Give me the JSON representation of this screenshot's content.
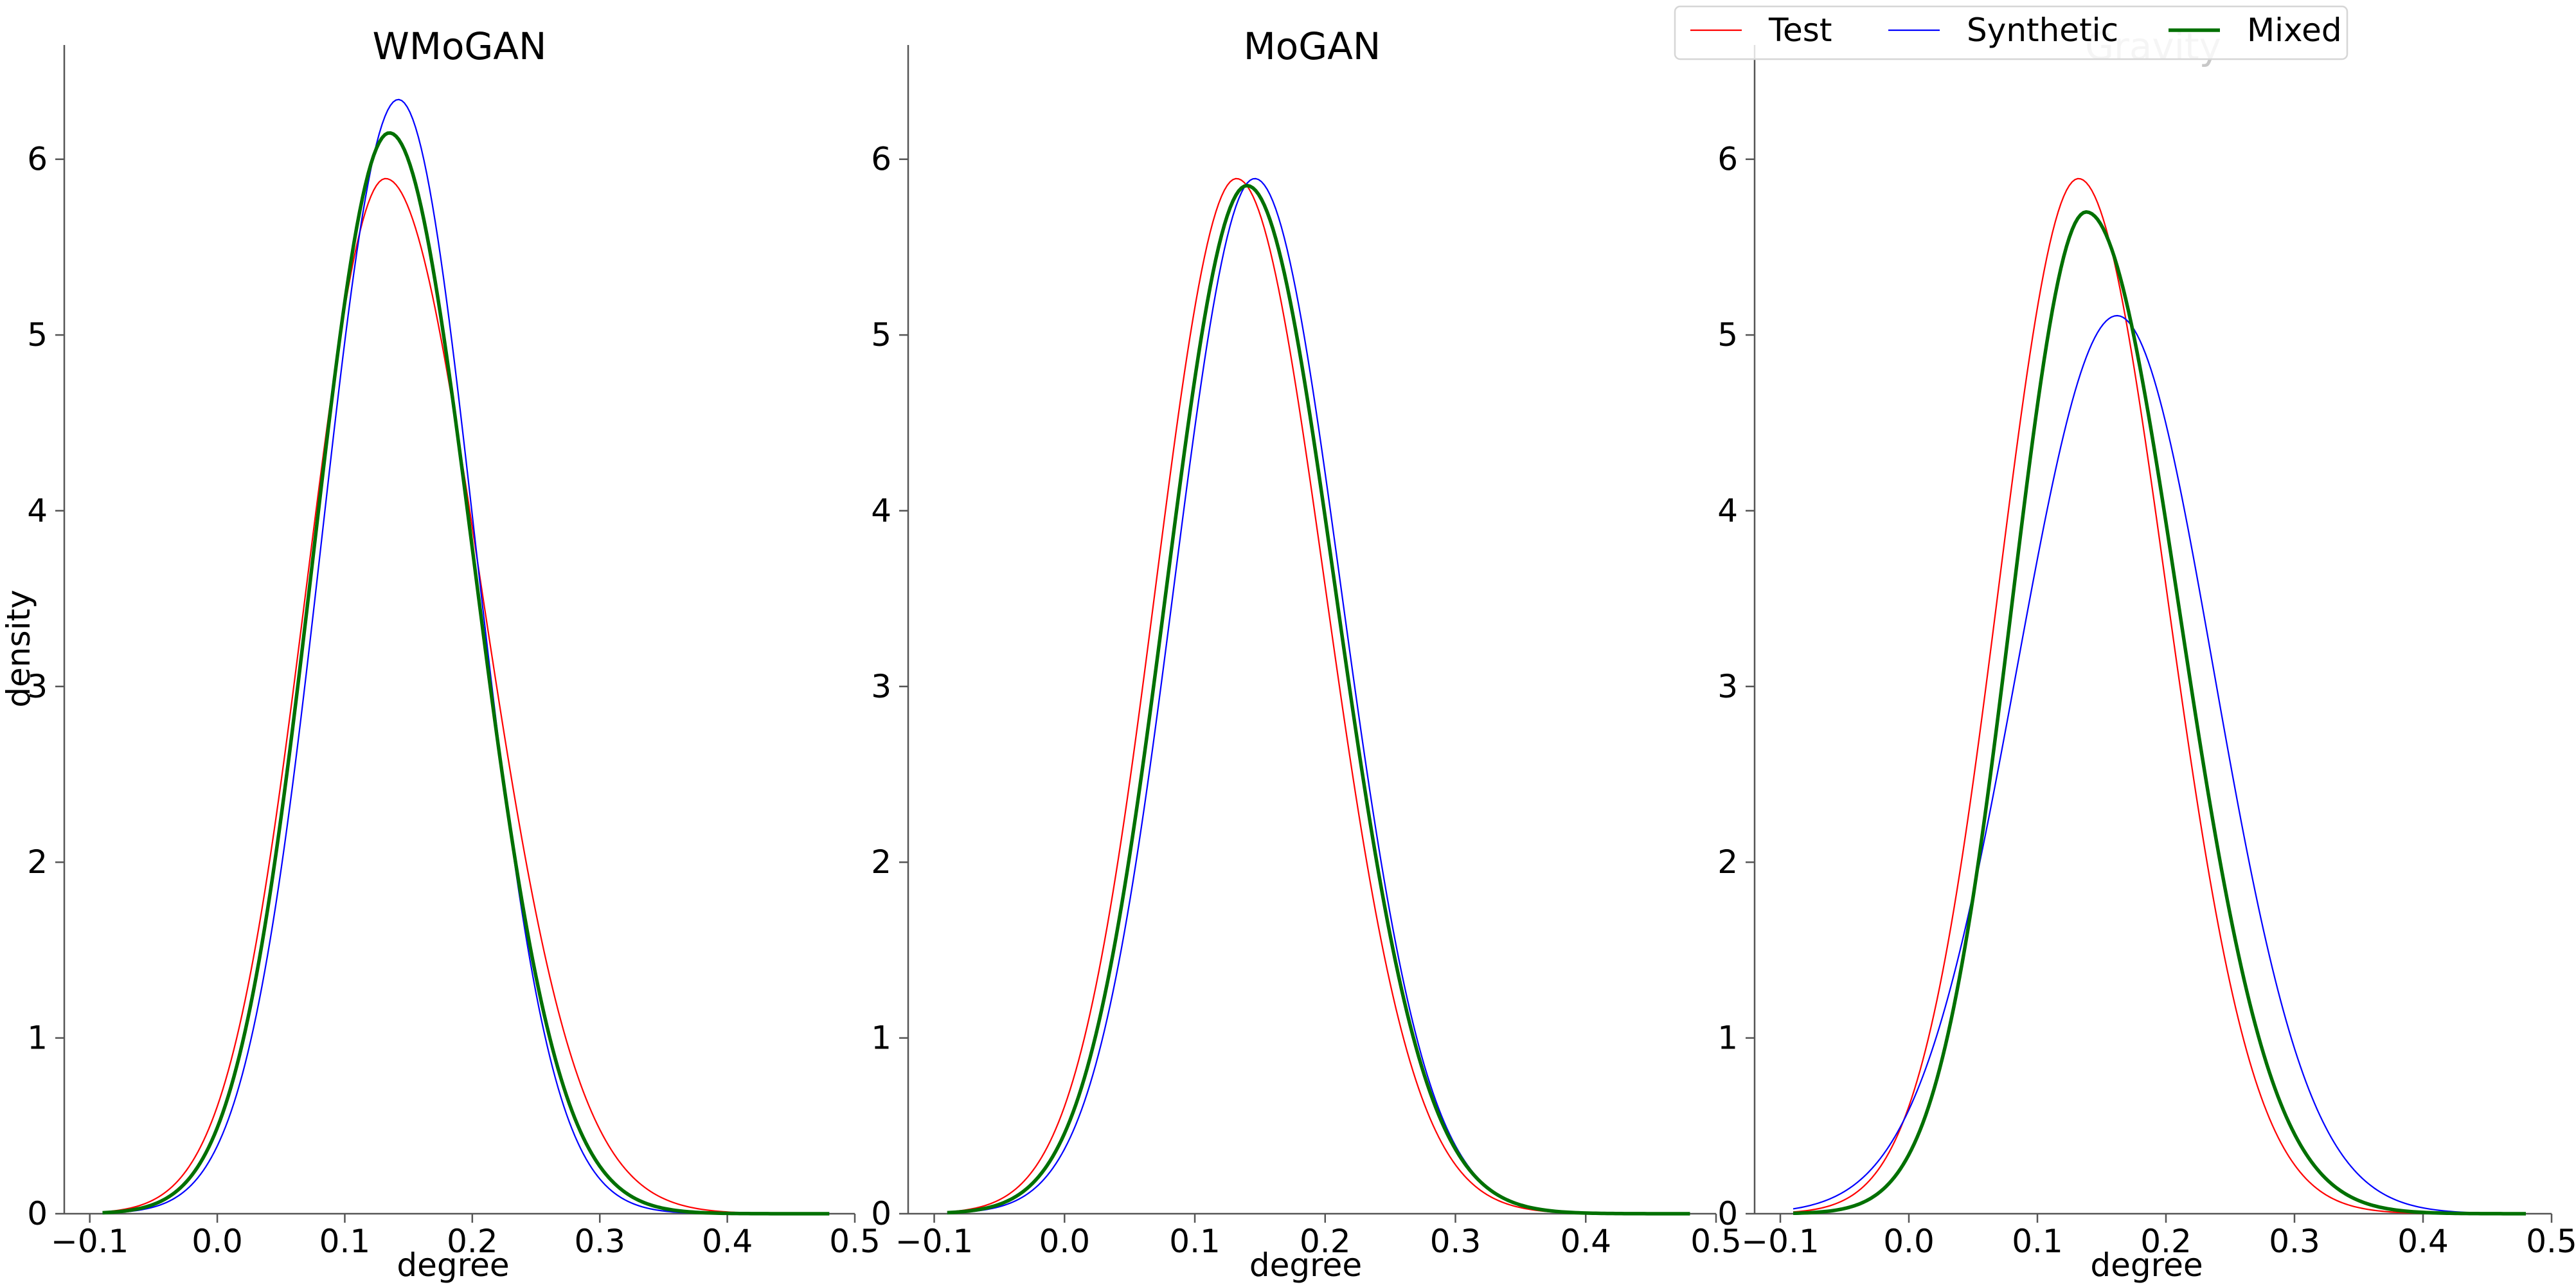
{
  "chart_data": [
    {
      "type": "line",
      "title": "WMoGAN",
      "xlabel": "degree",
      "ylabel": "density",
      "xlim": [
        -0.12,
        0.5
      ],
      "ylim": [
        0,
        6.65
      ],
      "xticks": [
        -0.1,
        0.0,
        0.1,
        0.2,
        0.3,
        0.4,
        0.5
      ],
      "xtick_labels": [
        "−0.1",
        "0.0",
        "0.1",
        "0.2",
        "0.3",
        "0.4",
        "0.5"
      ],
      "yticks": [
        0,
        1,
        2,
        3,
        4,
        5,
        6
      ],
      "ytick_labels": [
        "0",
        "1",
        "2",
        "3",
        "4",
        "5",
        "6"
      ],
      "grid": false,
      "series": [
        {
          "name": "Test",
          "color": "#ff0000",
          "curve": {
            "peak_x": 0.132,
            "peak_y": 5.89,
            "sigma_left": 0.062,
            "sigma_right": 0.075
          },
          "x_range": [
            -0.09,
            0.48
          ]
        },
        {
          "name": "Synthetic",
          "color": "#0000ff",
          "curve": {
            "peak_x": 0.142,
            "peak_y": 6.34,
            "sigma_left": 0.06,
            "sigma_right": 0.06
          },
          "x_range": [
            -0.09,
            0.48
          ]
        },
        {
          "name": "Mixed",
          "color": "#007000",
          "curve": {
            "peak_x": 0.135,
            "peak_y": 6.15,
            "sigma_left": 0.06,
            "sigma_right": 0.066
          },
          "x_range": [
            -0.09,
            0.48
          ]
        }
      ]
    },
    {
      "type": "line",
      "title": "MoGAN",
      "xlabel": "degree",
      "ylabel": "",
      "xlim": [
        -0.12,
        0.5
      ],
      "ylim": [
        0,
        6.65
      ],
      "xticks": [
        -0.1,
        0.0,
        0.1,
        0.2,
        0.3,
        0.4,
        0.5
      ],
      "xtick_labels": [
        "−0.1",
        "0.0",
        "0.1",
        "0.2",
        "0.3",
        "0.4",
        "0.5"
      ],
      "yticks": [
        0,
        1,
        2,
        3,
        4,
        5,
        6
      ],
      "ytick_labels": [
        "0",
        "1",
        "2",
        "3",
        "4",
        "5",
        "6"
      ],
      "grid": false,
      "series": [
        {
          "name": "Test",
          "color": "#ff0000",
          "curve": {
            "peak_x": 0.132,
            "peak_y": 5.89,
            "sigma_left": 0.062,
            "sigma_right": 0.068
          },
          "x_range": [
            -0.09,
            0.48
          ]
        },
        {
          "name": "Synthetic",
          "color": "#0000ff",
          "curve": {
            "peak_x": 0.146,
            "peak_y": 5.89,
            "sigma_left": 0.062,
            "sigma_right": 0.066
          },
          "x_range": [
            -0.09,
            0.48
          ]
        },
        {
          "name": "Mixed",
          "color": "#007000",
          "curve": {
            "peak_x": 0.14,
            "peak_y": 5.85,
            "sigma_left": 0.062,
            "sigma_right": 0.068
          },
          "x_range": [
            -0.09,
            0.48
          ]
        }
      ]
    },
    {
      "type": "line",
      "title": "Gravity",
      "xlabel": "degree",
      "ylabel": "",
      "xlim": [
        -0.12,
        0.5
      ],
      "ylim": [
        0,
        6.65
      ],
      "xticks": [
        -0.1,
        0.0,
        0.1,
        0.2,
        0.3,
        0.4,
        0.5
      ],
      "xtick_labels": [
        "−0.1",
        "0.0",
        "0.1",
        "0.2",
        "0.3",
        "0.4",
        "0.5"
      ],
      "yticks": [
        0,
        1,
        2,
        3,
        4,
        5,
        6
      ],
      "ytick_labels": [
        "0",
        "1",
        "2",
        "3",
        "4",
        "5",
        "6"
      ],
      "grid": false,
      "series": [
        {
          "name": "Test",
          "color": "#ff0000",
          "curve": {
            "peak_x": 0.132,
            "peak_y": 5.89,
            "sigma_left": 0.062,
            "sigma_right": 0.068
          },
          "x_range": [
            -0.09,
            0.48
          ]
        },
        {
          "name": "Synthetic",
          "color": "#0000ff",
          "curve": {
            "peak_x": 0.162,
            "peak_y": 5.11,
            "sigma_left": 0.078,
            "sigma_right": 0.075
          },
          "x_range": [
            -0.09,
            0.48
          ]
        },
        {
          "name": "Mixed",
          "color": "#007000",
          "curve": {
            "peak_x": 0.138,
            "peak_y": 5.7,
            "sigma_left": 0.058,
            "sigma_right": 0.072
          },
          "x_range": [
            -0.09,
            0.48
          ]
        }
      ]
    }
  ],
  "legend": {
    "placement": "top-right",
    "entries": [
      {
        "label": "Test",
        "color": "#ff0000"
      },
      {
        "label": "Synthetic",
        "color": "#0000ff"
      },
      {
        "label": "Mixed",
        "color": "#007000"
      }
    ]
  }
}
